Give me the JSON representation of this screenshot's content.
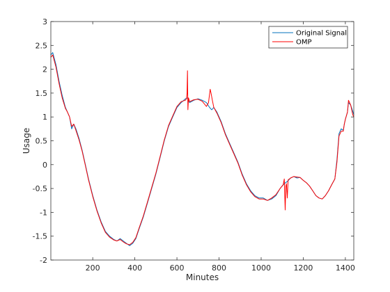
{
  "chart_data": {
    "type": "line",
    "title": "",
    "xlabel": "Minutes",
    "ylabel": "Usage",
    "xlim": [
      1,
      1440
    ],
    "ylim": [
      -2,
      3
    ],
    "xticks": [
      200,
      400,
      600,
      800,
      1000,
      1200,
      1400
    ],
    "yticks": [
      -2,
      -1.5,
      -1,
      -0.5,
      0,
      0.5,
      1,
      1.5,
      2,
      2.5,
      3
    ],
    "grid": false,
    "legend": "top-right",
    "series": [
      {
        "name": "Original Signal",
        "color": "#0072BD",
        "x": [
          1,
          10,
          25,
          40,
          55,
          70,
          80,
          90,
          100,
          110,
          120,
          135,
          150,
          165,
          180,
          200,
          220,
          240,
          260,
          280,
          300,
          315,
          330,
          345,
          360,
          375,
          390,
          405,
          420,
          440,
          460,
          480,
          500,
          520,
          540,
          560,
          580,
          600,
          620,
          640,
          650,
          660,
          680,
          700,
          720,
          740,
          755,
          765,
          775,
          790,
          810,
          830,
          850,
          870,
          890,
          910,
          930,
          950,
          970,
          990,
          1010,
          1030,
          1050,
          1070,
          1090,
          1110,
          1125,
          1140,
          1155,
          1170,
          1185,
          1200,
          1215,
          1230,
          1245,
          1260,
          1275,
          1290,
          1305,
          1320,
          1335,
          1350,
          1360,
          1370,
          1380,
          1390,
          1395,
          1400,
          1410,
          1415,
          1425,
          1435,
          1440
        ],
        "values": [
          2.3,
          2.35,
          2.1,
          1.75,
          1.45,
          1.2,
          1.1,
          1.0,
          0.75,
          0.85,
          0.75,
          0.55,
          0.3,
          0.0,
          -0.3,
          -0.65,
          -0.95,
          -1.2,
          -1.4,
          -1.5,
          -1.57,
          -1.6,
          -1.55,
          -1.6,
          -1.65,
          -1.7,
          -1.65,
          -1.55,
          -1.35,
          -1.1,
          -0.8,
          -0.5,
          -0.2,
          0.15,
          0.5,
          0.8,
          1.0,
          1.2,
          1.3,
          1.38,
          1.4,
          1.3,
          1.35,
          1.38,
          1.35,
          1.3,
          1.2,
          1.15,
          1.2,
          1.1,
          0.9,
          0.65,
          0.45,
          0.25,
          0.05,
          -0.2,
          -0.4,
          -0.55,
          -0.65,
          -0.7,
          -0.7,
          -0.75,
          -0.72,
          -0.65,
          -0.5,
          -0.4,
          -0.35,
          -0.28,
          -0.25,
          -0.28,
          -0.27,
          -0.33,
          -0.38,
          -0.45,
          -0.55,
          -0.65,
          -0.7,
          -0.72,
          -0.65,
          -0.55,
          -0.42,
          -0.3,
          0.1,
          0.65,
          0.75,
          0.72,
          0.85,
          0.95,
          1.1,
          1.3,
          1.25,
          1.12,
          1.05
        ]
      },
      {
        "name": "OMP",
        "color": "#FF0000",
        "x": [
          1,
          10,
          25,
          40,
          55,
          70,
          80,
          90,
          100,
          110,
          120,
          135,
          150,
          165,
          180,
          200,
          220,
          240,
          260,
          280,
          300,
          315,
          330,
          345,
          360,
          375,
          390,
          405,
          420,
          440,
          460,
          480,
          500,
          520,
          540,
          560,
          580,
          600,
          620,
          640,
          645,
          648,
          650,
          652,
          655,
          660,
          680,
          700,
          720,
          740,
          750,
          758,
          762,
          768,
          775,
          790,
          810,
          830,
          850,
          870,
          890,
          910,
          930,
          950,
          970,
          990,
          1010,
          1030,
          1050,
          1070,
          1090,
          1105,
          1110,
          1114,
          1117,
          1120,
          1124,
          1128,
          1140,
          1155,
          1170,
          1185,
          1200,
          1215,
          1230,
          1245,
          1260,
          1275,
          1290,
          1305,
          1320,
          1335,
          1350,
          1360,
          1370,
          1380,
          1390,
          1395,
          1400,
          1410,
          1415,
          1425,
          1435,
          1440
        ],
        "values": [
          2.25,
          2.3,
          2.05,
          1.7,
          1.4,
          1.18,
          1.1,
          1.0,
          0.8,
          0.85,
          0.72,
          0.52,
          0.28,
          -0.02,
          -0.32,
          -0.67,
          -0.97,
          -1.22,
          -1.42,
          -1.52,
          -1.58,
          -1.6,
          -1.57,
          -1.62,
          -1.66,
          -1.68,
          -1.63,
          -1.53,
          -1.33,
          -1.08,
          -0.78,
          -0.48,
          -0.18,
          0.17,
          0.52,
          0.82,
          1.02,
          1.22,
          1.32,
          1.35,
          1.38,
          1.5,
          1.97,
          1.15,
          1.4,
          1.32,
          1.36,
          1.37,
          1.33,
          1.22,
          1.3,
          1.58,
          1.5,
          1.35,
          1.2,
          1.08,
          0.88,
          0.63,
          0.43,
          0.23,
          0.03,
          -0.22,
          -0.42,
          -0.57,
          -0.67,
          -0.72,
          -0.72,
          -0.75,
          -0.7,
          -0.63,
          -0.5,
          -0.42,
          -0.3,
          -0.95,
          -0.45,
          -0.4,
          -0.7,
          -0.32,
          -0.28,
          -0.25,
          -0.26,
          -0.27,
          -0.33,
          -0.38,
          -0.45,
          -0.55,
          -0.65,
          -0.7,
          -0.72,
          -0.65,
          -0.55,
          -0.42,
          -0.3,
          0.05,
          0.6,
          0.7,
          0.7,
          0.85,
          0.95,
          1.1,
          1.35,
          1.25,
          1.05,
          1.0
        ]
      }
    ]
  }
}
